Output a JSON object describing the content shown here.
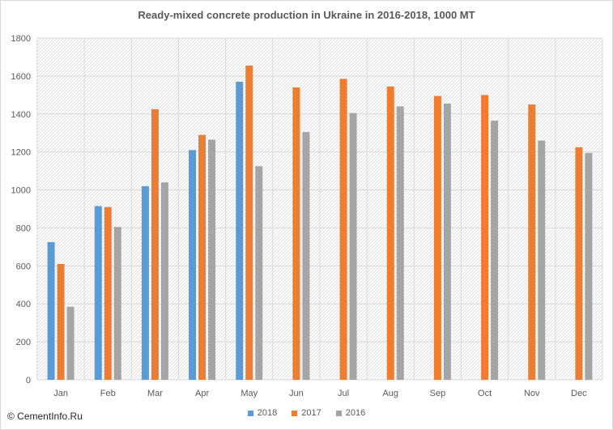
{
  "chart_data": {
    "type": "bar",
    "title": "Ready-mixed concrete production in Ukraine in 2016-2018,  1000  MT",
    "xlabel": "",
    "ylabel": "",
    "ylim": [
      0,
      1800
    ],
    "yticks": [
      0,
      200,
      400,
      600,
      800,
      1000,
      1200,
      1400,
      1600,
      1800
    ],
    "grid": true,
    "legend_position": "bottom",
    "categories": [
      "Jan",
      "Feb",
      "Mar",
      "Apr",
      "May",
      "Jun",
      "Jul",
      "Aug",
      "Sep",
      "Oct",
      "Nov",
      "Dec"
    ],
    "series": [
      {
        "name": "2018",
        "color": "#5b9bd5",
        "values": [
          725,
          915,
          1020,
          1210,
          1570,
          null,
          null,
          null,
          null,
          null,
          null,
          null
        ]
      },
      {
        "name": "2017",
        "color": "#ed7d31",
        "values": [
          610,
          910,
          1425,
          1290,
          1655,
          1540,
          1585,
          1545,
          1495,
          1500,
          1450,
          1225
        ]
      },
      {
        "name": "2016",
        "color": "#a5a5a5",
        "values": [
          385,
          805,
          1040,
          1265,
          1125,
          1305,
          1405,
          1440,
          1455,
          1365,
          1260,
          1195
        ]
      }
    ]
  },
  "watermark": "© CementInfo.Ru"
}
